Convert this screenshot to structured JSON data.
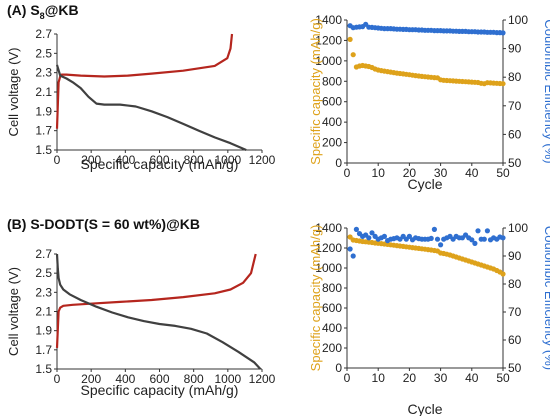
{
  "panels": [
    {
      "label_prefix": "(A) S",
      "label_sub": "8",
      "label_suffix": "@KB"
    },
    {
      "label_prefix": "(B) S-DODT(S = 60 wt%)@KB",
      "label_sub": "",
      "label_suffix": ""
    }
  ],
  "colors": {
    "charge": "#b5261e",
    "discharge": "#404040",
    "capacity": "#dea21b",
    "efficiency": "#2f6fd0",
    "axis": "#333333",
    "tick_text": "#222222"
  },
  "chart_data": [
    {
      "type": "line",
      "panel": "A",
      "xlabel": "Specific capacity (mAh/g)",
      "ylabel": "Cell voltage (V)",
      "xlim": [
        0,
        1300
      ],
      "ylim": [
        1.5,
        2.7
      ],
      "xticks": [
        "0",
        "200",
        "400",
        "600",
        "800",
        "1000",
        "1200"
      ],
      "yticks": [
        "1.5",
        "1.7",
        "1.9",
        "2.1",
        "2.3",
        "2.5",
        "2.7"
      ],
      "series": [
        {
          "role": "charge",
          "x": [
            0,
            10,
            20,
            30,
            60,
            150,
            300,
            450,
            600,
            800,
            1000,
            1080,
            1100,
            1110
          ],
          "y": [
            1.72,
            2.2,
            2.26,
            2.28,
            2.28,
            2.27,
            2.26,
            2.27,
            2.29,
            2.32,
            2.37,
            2.45,
            2.55,
            2.7
          ]
        },
        {
          "role": "discharge",
          "x": [
            0,
            20,
            60,
            100,
            150,
            200,
            250,
            300,
            400,
            500,
            600,
            700,
            800,
            900,
            1000,
            1100,
            1200
          ],
          "y": [
            2.38,
            2.27,
            2.24,
            2.2,
            2.14,
            2.05,
            1.98,
            1.97,
            1.97,
            1.95,
            1.9,
            1.84,
            1.77,
            1.7,
            1.63,
            1.57,
            1.5
          ]
        }
      ]
    },
    {
      "type": "scatter",
      "panel": "A",
      "xlabel": "Cycle",
      "ylabel": "Specific capacity (mAh/g)",
      "y2label": "Coulombic Efficiency (%)",
      "xlim": [
        0,
        50
      ],
      "ylim": [
        0,
        1400
      ],
      "y2lim": [
        50,
        100
      ],
      "xticks": [
        "0",
        "10",
        "20",
        "30",
        "40",
        "50"
      ],
      "yticks": [
        "0",
        "200",
        "400",
        "600",
        "800",
        "1000",
        "1200",
        "1400"
      ],
      "y2ticks": [
        "50",
        "60",
        "70",
        "80",
        "90",
        "100"
      ],
      "series": [
        {
          "role": "capacity",
          "x": [
            1,
            2,
            3,
            4,
            5,
            6,
            7,
            8,
            9,
            10,
            11,
            12,
            13,
            14,
            15,
            16,
            17,
            18,
            19,
            20,
            21,
            22,
            23,
            24,
            25,
            26,
            27,
            28,
            29,
            30,
            31,
            32,
            33,
            34,
            35,
            36,
            37,
            38,
            39,
            40,
            41,
            42,
            43,
            44,
            45,
            46,
            47,
            48,
            49,
            50
          ],
          "y": [
            1210,
            1060,
            940,
            950,
            955,
            950,
            945,
            935,
            920,
            910,
            905,
            900,
            895,
            890,
            885,
            880,
            876,
            872,
            868,
            864,
            860,
            856,
            852,
            848,
            845,
            842,
            839,
            836,
            834,
            815,
            810,
            808,
            806,
            804,
            802,
            800,
            798,
            796,
            794,
            792,
            790,
            788,
            780,
            776,
            786,
            784,
            782,
            780,
            778,
            776
          ]
        },
        {
          "role": "efficiency",
          "x": [
            1,
            2,
            3,
            4,
            5,
            6,
            7,
            8,
            9,
            10,
            11,
            12,
            13,
            14,
            15,
            16,
            17,
            18,
            19,
            20,
            21,
            22,
            23,
            24,
            25,
            26,
            27,
            28,
            29,
            30,
            31,
            32,
            33,
            34,
            35,
            36,
            37,
            38,
            39,
            40,
            41,
            42,
            43,
            44,
            45,
            46,
            47,
            48,
            49,
            50
          ],
          "y": [
            98.0,
            97.3,
            97.5,
            97.6,
            97.7,
            98.5,
            97.5,
            97.4,
            97.3,
            97.2,
            97.1,
            97.0,
            97.0,
            97.0,
            96.9,
            96.8,
            96.8,
            96.7,
            96.7,
            96.6,
            96.6,
            96.6,
            96.5,
            96.5,
            96.4,
            96.4,
            96.4,
            96.3,
            96.3,
            96.3,
            96.2,
            96.2,
            96.2,
            96.1,
            96.1,
            96.0,
            96.0,
            96.0,
            95.9,
            95.9,
            95.9,
            95.8,
            95.8,
            95.8,
            95.7,
            95.7,
            95.7,
            95.6,
            95.6,
            95.5
          ]
        }
      ]
    },
    {
      "type": "line",
      "panel": "B",
      "xlabel": "Specific capacity (mAh/g)",
      "ylabel": "Cell voltage (V)",
      "xlim": [
        0,
        1300
      ],
      "ylim": [
        1.5,
        2.7
      ],
      "xticks": [
        "0",
        "200",
        "400",
        "600",
        "800",
        "1000",
        "1200"
      ],
      "yticks": [
        "1.5",
        "1.7",
        "1.9",
        "2.1",
        "2.3",
        "2.5",
        "2.7"
      ],
      "series": [
        {
          "role": "charge",
          "x": [
            0,
            10,
            20,
            40,
            100,
            200,
            400,
            600,
            800,
            1000,
            1100,
            1180,
            1230,
            1260
          ],
          "y": [
            1.72,
            2.1,
            2.14,
            2.16,
            2.17,
            2.18,
            2.2,
            2.22,
            2.25,
            2.29,
            2.33,
            2.4,
            2.5,
            2.7
          ]
        },
        {
          "role": "discharge",
          "x": [
            0,
            5,
            10,
            20,
            40,
            80,
            150,
            250,
            350,
            450,
            550,
            650,
            750,
            850,
            950,
            1050,
            1150,
            1250,
            1290
          ],
          "y": [
            2.7,
            2.55,
            2.45,
            2.38,
            2.33,
            2.28,
            2.22,
            2.15,
            2.09,
            2.04,
            2.0,
            1.97,
            1.95,
            1.92,
            1.87,
            1.78,
            1.68,
            1.57,
            1.5
          ]
        }
      ]
    },
    {
      "type": "scatter",
      "panel": "B",
      "xlabel": "Cycle",
      "ylabel": "Specific capacity (mAh/g)",
      "y2label": "Coulombic Efficiency (%)",
      "xlim": [
        0,
        50
      ],
      "ylim": [
        0,
        1400
      ],
      "y2lim": [
        50,
        100
      ],
      "xticks": [
        "0",
        "10",
        "20",
        "30",
        "40",
        "50"
      ],
      "yticks": [
        "0",
        "200",
        "400",
        "600",
        "800",
        "1000",
        "1200",
        "1400"
      ],
      "y2ticks": [
        "50",
        "60",
        "70",
        "80",
        "90",
        "100"
      ],
      "series": [
        {
          "role": "capacity",
          "x": [
            1,
            2,
            3,
            4,
            5,
            6,
            7,
            8,
            9,
            10,
            11,
            12,
            13,
            14,
            15,
            16,
            17,
            18,
            19,
            20,
            21,
            22,
            23,
            24,
            25,
            26,
            27,
            28,
            29,
            30,
            31,
            32,
            33,
            34,
            35,
            36,
            37,
            38,
            39,
            40,
            41,
            42,
            43,
            44,
            45,
            46,
            47,
            48,
            49,
            50
          ],
          "y": [
            1310,
            1280,
            1275,
            1270,
            1265,
            1262,
            1258,
            1255,
            1250,
            1247,
            1244,
            1240,
            1236,
            1232,
            1228,
            1224,
            1220,
            1216,
            1212,
            1208,
            1204,
            1200,
            1196,
            1192,
            1188,
            1184,
            1180,
            1175,
            1170,
            1150,
            1145,
            1138,
            1130,
            1120,
            1110,
            1100,
            1090,
            1080,
            1070,
            1060,
            1050,
            1040,
            1030,
            1020,
            1010,
            1000,
            990,
            975,
            960,
            940
          ]
        },
        {
          "role": "efficiency",
          "x": [
            1,
            2,
            3,
            4,
            5,
            6,
            7,
            8,
            9,
            10,
            11,
            12,
            13,
            14,
            15,
            16,
            17,
            18,
            19,
            20,
            21,
            22,
            23,
            24,
            25,
            26,
            27,
            28,
            29,
            30,
            31,
            32,
            33,
            34,
            35,
            36,
            37,
            38,
            39,
            40,
            41,
            42,
            43,
            44,
            45,
            46,
            47,
            48,
            49,
            50
          ],
          "y": [
            92.5,
            90.0,
            99.5,
            98.0,
            97.0,
            97.5,
            96.5,
            98.3,
            97.0,
            96.0,
            96.5,
            97.0,
            95.5,
            96.0,
            96.2,
            96.5,
            96.0,
            97.0,
            96.0,
            97.0,
            95.8,
            96.5,
            96.2,
            96.0,
            96.0,
            96.0,
            96.3,
            99.5,
            96.0,
            94.0,
            96.0,
            96.5,
            97.0,
            96.0,
            97.0,
            96.5,
            96.5,
            97.5,
            96.5,
            95.8,
            94.5,
            99.0,
            96.0,
            96.0,
            99.0,
            95.8,
            96.5,
            96.0,
            96.8,
            96.5
          ]
        }
      ]
    }
  ]
}
